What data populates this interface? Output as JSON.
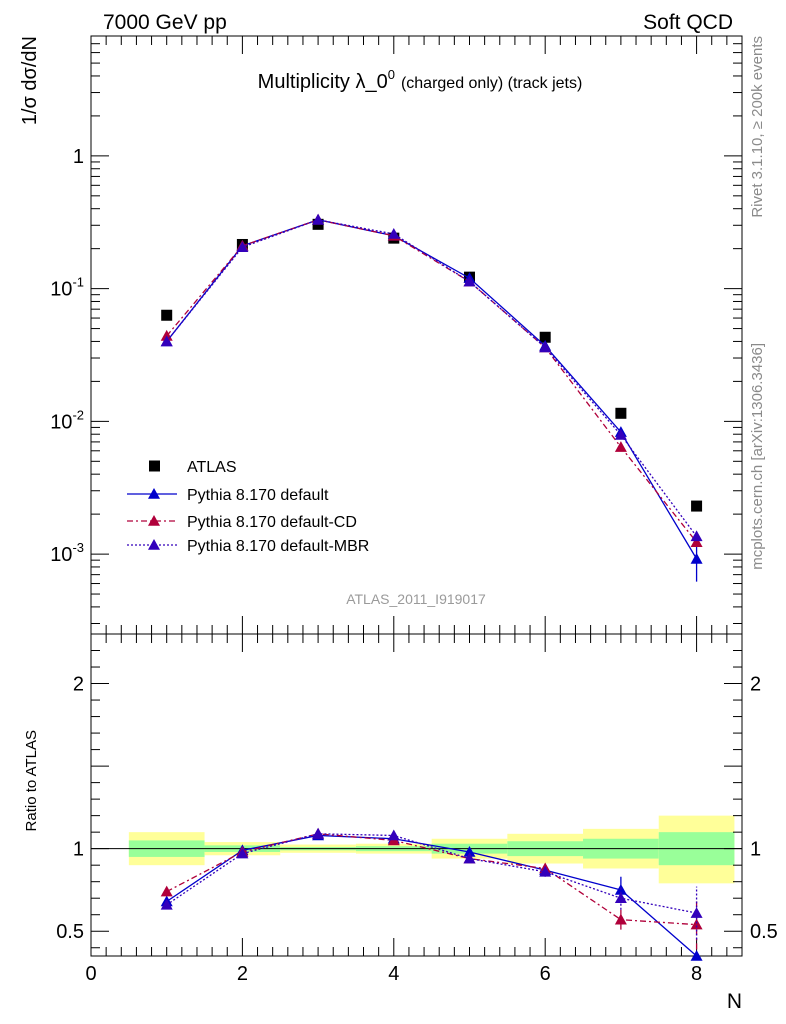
{
  "header": {
    "left": "7000 GeV pp",
    "right": "Soft QCD",
    "title_main": "Multiplicity λ_0",
    "title_sup": "0",
    "title_small": "(charged only) (track jets)"
  },
  "side_labels": {
    "rivet": "Rivet 3.1.10, ≥ 200k events",
    "mcplots": "mcplots.cern.ch [arXiv:1306.3436]"
  },
  "reference": "ATLAS_2011_I919017",
  "colors": {
    "atlas": "#000000",
    "default": "#0000cc",
    "cd": "#b0003a",
    "mbr": "#3300bb",
    "band_inner": "#99ff99",
    "band_outer": "#ffff99"
  },
  "chart_data": {
    "type": "line",
    "xlabel": "N",
    "xlim": [
      0,
      8.6
    ],
    "x_ticks": [
      "0",
      "2",
      "4",
      "6",
      "8"
    ],
    "main": {
      "ylabel": "1/σ dσ/dN",
      "yscale": "log",
      "ylim": [
        0.00025,
        8
      ],
      "y_ticks": [
        {
          "base": "10",
          "exp": "-3"
        },
        {
          "base": "10",
          "exp": "-2"
        },
        {
          "base": "10",
          "exp": "-1"
        },
        {
          "base": "1",
          "exp": ""
        }
      ],
      "legend_position": "bottom-left",
      "series": [
        {
          "name": "ATLAS",
          "style": "square",
          "x": [
            1,
            2,
            3,
            4,
            5,
            6,
            7,
            8
          ],
          "y": [
            0.063,
            0.215,
            0.305,
            0.24,
            0.122,
            0.043,
            0.0115,
            0.0023
          ]
        },
        {
          "name": "Pythia 8.170 default",
          "style": "solid",
          "x": [
            1,
            2,
            3,
            4,
            5,
            6,
            7,
            8
          ],
          "y": [
            0.04,
            0.21,
            0.33,
            0.25,
            0.12,
            0.037,
            0.0083,
            0.00092
          ],
          "yerr_last": 0.0003
        },
        {
          "name": "Pythia 8.170 default-CD",
          "style": "dashdot",
          "x": [
            1,
            2,
            3,
            4,
            5,
            6,
            7,
            8
          ],
          "y": [
            0.044,
            0.21,
            0.33,
            0.25,
            0.113,
            0.036,
            0.0064,
            0.00123
          ]
        },
        {
          "name": "Pythia 8.170 default-MBR",
          "style": "dotted",
          "x": [
            1,
            2,
            3,
            4,
            5,
            6,
            7,
            8
          ],
          "y": [
            0.04,
            0.205,
            0.33,
            0.258,
            0.113,
            0.036,
            0.0079,
            0.00136
          ]
        }
      ]
    },
    "ratio": {
      "ylabel": "Ratio to ATLAS",
      "ylim": [
        0.35,
        2.3
      ],
      "y_ticks": [
        "0.5",
        "1",
        "2"
      ],
      "bands": [
        {
          "x0": 0.5,
          "x1": 1.5,
          "outer": [
            0.9,
            1.1
          ],
          "inner": [
            0.95,
            1.05
          ]
        },
        {
          "x0": 1.5,
          "x1": 2.5,
          "outer": [
            0.96,
            1.04
          ],
          "inner": [
            0.98,
            1.02
          ]
        },
        {
          "x0": 2.5,
          "x1": 3.5,
          "outer": [
            0.975,
            1.025
          ],
          "inner": [
            0.99,
            1.01
          ]
        },
        {
          "x0": 3.5,
          "x1": 4.5,
          "outer": [
            0.97,
            1.03
          ],
          "inner": [
            0.985,
            1.015
          ]
        },
        {
          "x0": 4.5,
          "x1": 5.5,
          "outer": [
            0.94,
            1.06
          ],
          "inner": [
            0.97,
            1.03
          ]
        },
        {
          "x0": 5.5,
          "x1": 6.5,
          "outer": [
            0.91,
            1.09
          ],
          "inner": [
            0.955,
            1.045
          ]
        },
        {
          "x0": 6.5,
          "x1": 7.5,
          "outer": [
            0.88,
            1.12
          ],
          "inner": [
            0.94,
            1.06
          ]
        },
        {
          "x0": 7.5,
          "x1": 8.5,
          "outer": [
            0.79,
            1.2
          ],
          "inner": [
            0.9,
            1.1
          ]
        }
      ],
      "series": [
        {
          "name": "Pythia 8.170 default",
          "style": "solid",
          "x": [
            1,
            2,
            3,
            4,
            5,
            6,
            7,
            8
          ],
          "y": [
            0.68,
            0.99,
            1.08,
            1.06,
            0.98,
            0.87,
            0.75,
            0.35
          ],
          "yerr": [
            0.02,
            0.01,
            0.01,
            0.01,
            0.02,
            0.03,
            0.08,
            0.0
          ]
        },
        {
          "name": "Pythia 8.170 default-CD",
          "style": "dashdot",
          "x": [
            1,
            2,
            3,
            4,
            5,
            6,
            7,
            8
          ],
          "y": [
            0.74,
            0.98,
            1.09,
            1.05,
            0.94,
            0.88,
            0.57,
            0.54
          ],
          "yerr": [
            0.02,
            0.01,
            0.01,
            0.01,
            0.01,
            0.03,
            0.06,
            0.15
          ]
        },
        {
          "name": "Pythia 8.170 default-MBR",
          "style": "dotted",
          "x": [
            1,
            2,
            3,
            4,
            5,
            6,
            7,
            8
          ],
          "y": [
            0.66,
            0.97,
            1.09,
            1.08,
            0.94,
            0.86,
            0.7,
            0.61
          ],
          "yerr": [
            0.02,
            0.01,
            0.01,
            0.01,
            0.01,
            0.03,
            0.07,
            0.16
          ]
        }
      ]
    }
  }
}
